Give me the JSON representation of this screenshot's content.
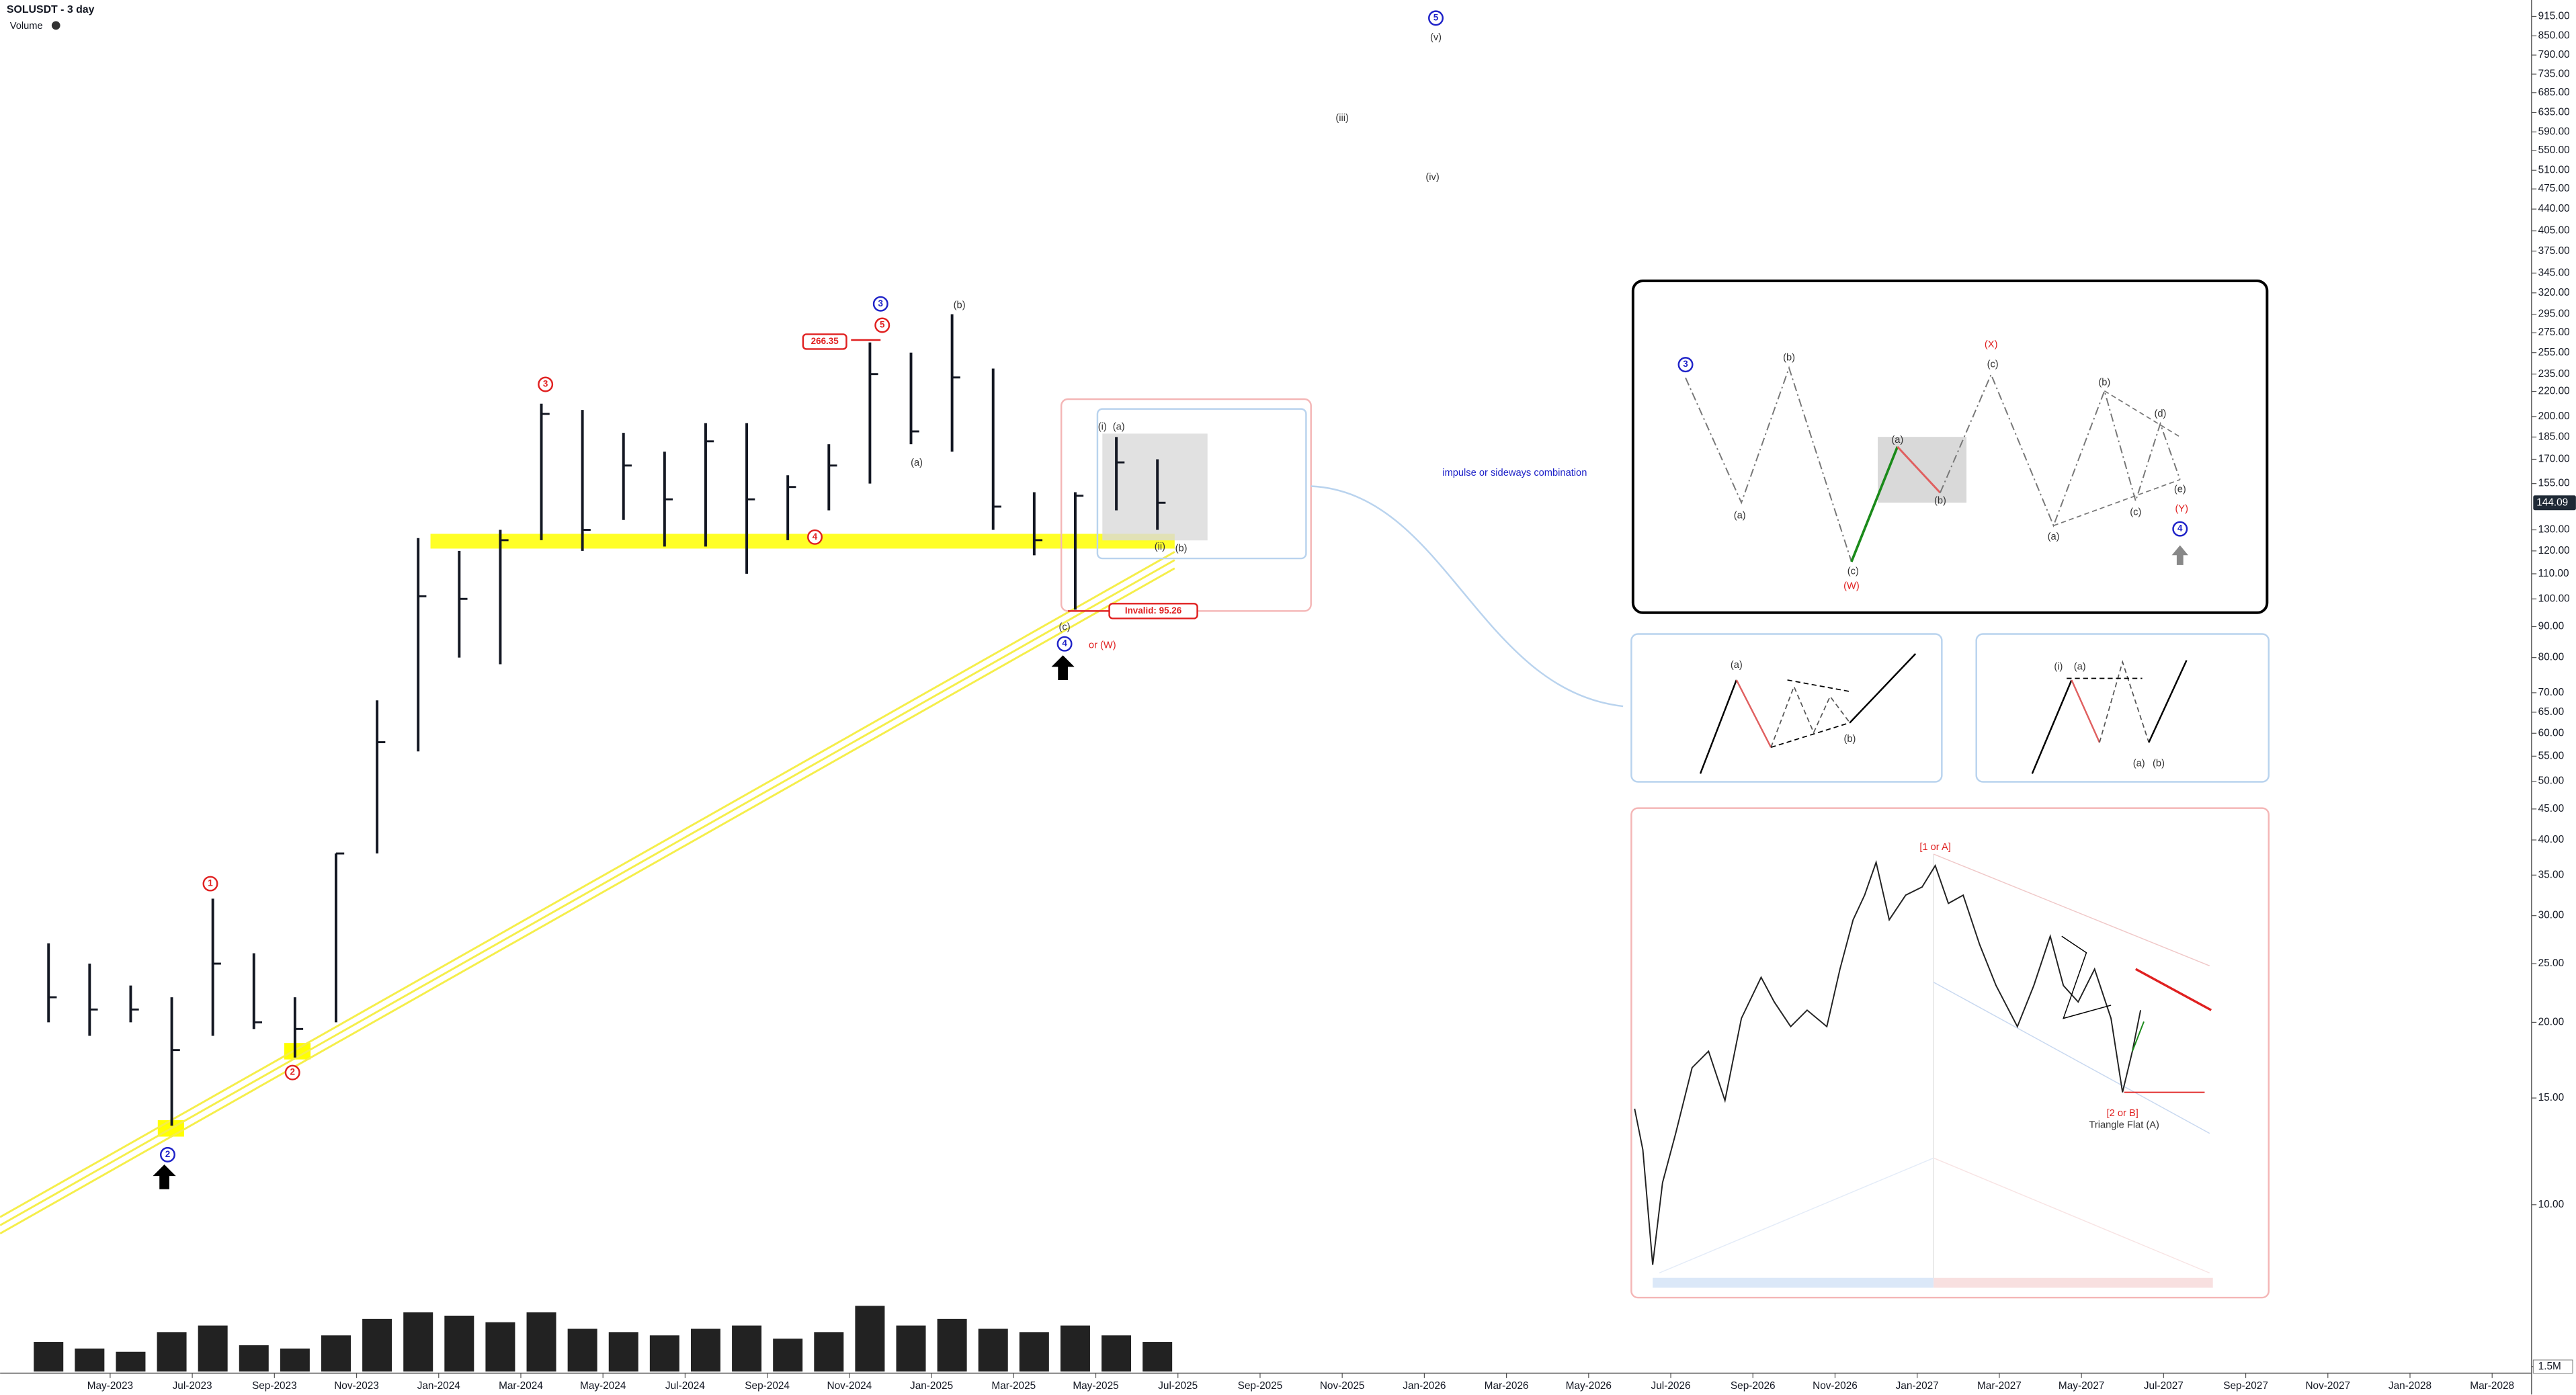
{
  "chart_data": {
    "type": "ohlc",
    "symbol_title": "SOLUSDT - 3 day",
    "volume_title": "Volume",
    "log_scale": true,
    "grid": false,
    "color": "#131722",
    "x": [
      "2023-03",
      "2023-04",
      "2023-05",
      "2023-06",
      "2023-07",
      "2023-08",
      "2023-09",
      "2023-10",
      "2023-11",
      "2023-12",
      "2024-01",
      "2024-02",
      "2024-03",
      "2024-04",
      "2024-05",
      "2024-06",
      "2024-07",
      "2024-08",
      "2024-09",
      "2024-10",
      "2024-11",
      "2024-12",
      "2025-01",
      "2025-02",
      "2025-03",
      "2025-04",
      "2025-05",
      "2025-06"
    ],
    "high": [
      27,
      25,
      23,
      22,
      32,
      26,
      22,
      38,
      68,
      126,
      120,
      130,
      210,
      205,
      188,
      175,
      195,
      195,
      160,
      180,
      265,
      255,
      295,
      240,
      150,
      150,
      185,
      170
    ],
    "low": [
      20,
      19,
      20,
      13.5,
      19,
      19.5,
      17.5,
      20,
      38,
      56,
      80,
      78,
      125,
      120,
      135,
      122,
      122,
      110,
      125,
      140,
      155,
      180,
      175,
      130,
      118,
      96,
      140,
      130
    ],
    "close": [
      22,
      21,
      21,
      18,
      25,
      20,
      19.5,
      38,
      58,
      101,
      100,
      125,
      202,
      130,
      166,
      146,
      182,
      146,
      153,
      166,
      235,
      189,
      232,
      142,
      125,
      148,
      168,
      144.09
    ],
    "volume": [
      9000000,
      7000000,
      6000000,
      12000000,
      14000000,
      8000000,
      7000000,
      11000000,
      16000000,
      18000000,
      17000000,
      15000000,
      18000000,
      13000000,
      12000000,
      11000000,
      13000000,
      14000000,
      10000000,
      12000000,
      20000000,
      14000000,
      16000000,
      13000000,
      12000000,
      14000000,
      11000000,
      9000000
    ],
    "last_price": {
      "value": 144.09,
      "label": "144.09"
    },
    "ylim": [
      6.6,
      974
    ],
    "yticks": [
      {
        "value": 915,
        "label": "915.00"
      },
      {
        "value": 850,
        "label": "850.00"
      },
      {
        "value": 790,
        "label": "790.00"
      },
      {
        "value": 735,
        "label": "735.00"
      },
      {
        "value": 685,
        "label": "685.00"
      },
      {
        "value": 635,
        "label": "635.00"
      },
      {
        "value": 590,
        "label": "590.00"
      },
      {
        "value": 550,
        "label": "550.00"
      },
      {
        "value": 510,
        "label": "510.00"
      },
      {
        "value": 475,
        "label": "475.00"
      },
      {
        "value": 440,
        "label": "440.00"
      },
      {
        "value": 405,
        "label": "405.00"
      },
      {
        "value": 375,
        "label": "375.00"
      },
      {
        "value": 345,
        "label": "345.00"
      },
      {
        "value": 320,
        "label": "320.00"
      },
      {
        "value": 295,
        "label": "295.00"
      },
      {
        "value": 275,
        "label": "275.00"
      },
      {
        "value": 255,
        "label": "255.00"
      },
      {
        "value": 235,
        "label": "235.00"
      },
      {
        "value": 220,
        "label": "220.00"
      },
      {
        "value": 200,
        "label": "200.00"
      },
      {
        "value": 185,
        "label": "185.00"
      },
      {
        "value": 170,
        "label": "170.00"
      },
      {
        "value": 155,
        "label": "155.00"
      },
      {
        "value": 130,
        "label": "130.00"
      },
      {
        "value": 120,
        "label": "120.00"
      },
      {
        "value": 110,
        "label": "110.00"
      },
      {
        "value": 100,
        "label": "100.00"
      },
      {
        "value": 90,
        "label": "90.00"
      },
      {
        "value": 80,
        "label": "80.00"
      },
      {
        "value": 70,
        "label": "70.00"
      },
      {
        "value": 65,
        "label": "65.00"
      },
      {
        "value": 60,
        "label": "60.00"
      },
      {
        "value": 55,
        "label": "55.00"
      },
      {
        "value": 50,
        "label": "50.00"
      },
      {
        "value": 45,
        "label": "45.00"
      },
      {
        "value": 40,
        "label": "40.00"
      },
      {
        "value": 35,
        "label": "35.00"
      },
      {
        "value": 30,
        "label": "30.00"
      },
      {
        "value": 25,
        "label": "25.00"
      },
      {
        "value": 20,
        "label": "20.00"
      },
      {
        "value": 15,
        "label": "15.00"
      },
      {
        "value": 10,
        "label": "10.00"
      }
    ],
    "volume_ylim": [
      0,
      22500000
    ],
    "volume_yticks": [
      {
        "value": 1500000,
        "label": "1.5M"
      }
    ],
    "xticks": [
      {
        "value": "2023-05",
        "label": "May-2023"
      },
      {
        "value": "2023-07",
        "label": "Jul-2023"
      },
      {
        "value": "2023-09",
        "label": "Sep-2023"
      },
      {
        "value": "2023-11",
        "label": "Nov-2023"
      },
      {
        "value": "2024-01",
        "label": "Jan-2024"
      },
      {
        "value": "2024-03",
        "label": "Mar-2024"
      },
      {
        "value": "2024-05",
        "label": "May-2024"
      },
      {
        "value": "2024-07",
        "label": "Jul-2024"
      },
      {
        "value": "2024-09",
        "label": "Sep-2024"
      },
      {
        "value": "2024-11",
        "label": "Nov-2024"
      },
      {
        "value": "2025-01",
        "label": "Jan-2025"
      },
      {
        "value": "2025-03",
        "label": "Mar-2025"
      },
      {
        "value": "2025-05",
        "label": "May-2025"
      },
      {
        "value": "2025-07",
        "label": "Jul-2025"
      },
      {
        "value": "2025-09",
        "label": "Sep-2025"
      },
      {
        "value": "2025-11",
        "label": "Nov-2025"
      },
      {
        "value": "2026-01",
        "label": "Jan-2026"
      },
      {
        "value": "2026-03",
        "label": "Mar-2026"
      },
      {
        "value": "2026-05",
        "label": "May-2026"
      },
      {
        "value": "2026-07",
        "label": "Jul-2026"
      },
      {
        "value": "2026-09",
        "label": "Sep-2026"
      },
      {
        "value": "2026-11",
        "label": "Nov-2026"
      },
      {
        "value": "2027-01",
        "label": "Jan-2027"
      },
      {
        "value": "2027-03",
        "label": "Mar-2027"
      },
      {
        "value": "2027-05",
        "label": "May-2027"
      },
      {
        "value": "2027-07",
        "label": "Jul-2027"
      },
      {
        "value": "2027-09",
        "label": "Sep-2027"
      },
      {
        "value": "2027-11",
        "label": "Nov-2027"
      },
      {
        "value": "2028-01",
        "label": "Jan-2028"
      },
      {
        "value": "2028-03",
        "label": "Mar-2028"
      }
    ],
    "annotations": [
      {
        "text": "5",
        "color": "#1e22c8",
        "shape": "circle"
      },
      {
        "text": "(v)",
        "color": "#333333"
      },
      {
        "text": "(iii)",
        "color": "#333333"
      },
      {
        "text": "(iv)",
        "color": "#333333"
      },
      {
        "text": "3",
        "color": "#1e22c8",
        "shape": "circle"
      },
      {
        "text": "5",
        "color": "#e02020",
        "shape": "circle"
      },
      {
        "text": "(b)",
        "color": "#333333"
      },
      {
        "text": "266.35",
        "color": "#e02020",
        "shape": "box"
      },
      {
        "text": "3",
        "color": "#e02020",
        "shape": "circle"
      },
      {
        "text": "(a)",
        "color": "#333333"
      },
      {
        "text": "4",
        "color": "#e02020",
        "shape": "circle"
      },
      {
        "text": "(i)",
        "color": "#333333"
      },
      {
        "text": "(a)",
        "color": "#333333"
      },
      {
        "text": "(ii)",
        "color": "#333333"
      },
      {
        "text": "(b)",
        "color": "#333333"
      },
      {
        "text": "(c)",
        "color": "#333333"
      },
      {
        "text": "4",
        "color": "#1e22c8",
        "shape": "circle"
      },
      {
        "text": "or (W)",
        "color": "#e02020"
      },
      {
        "text": "Invalid: 95.26",
        "color": "#e02020",
        "shape": "box"
      },
      {
        "text": "1",
        "color": "#e02020",
        "shape": "circle"
      },
      {
        "text": "2",
        "color": "#e02020",
        "shape": "circle"
      },
      {
        "text": "2",
        "color": "#1e22c8",
        "shape": "circle"
      },
      {
        "text": "impulse or sideways combination",
        "color": "#1e22c8"
      },
      {
        "text": "3",
        "color": "#1e22c8",
        "shape": "circle"
      },
      {
        "text": "(b)",
        "color": "#333333"
      },
      {
        "text": "(a)",
        "color": "#333333"
      },
      {
        "text": "(a)",
        "color": "#333333"
      },
      {
        "text": "(b)",
        "color": "#333333"
      },
      {
        "text": "(c)",
        "color": "#333333"
      },
      {
        "text": "(W)",
        "color": "#e02020"
      },
      {
        "text": "(X)",
        "color": "#e02020"
      },
      {
        "text": "(c)",
        "color": "#333333"
      },
      {
        "text": "(b)",
        "color": "#333333"
      },
      {
        "text": "(d)",
        "color": "#333333"
      },
      {
        "text": "(a)",
        "color": "#333333"
      },
      {
        "text": "(c)",
        "color": "#333333"
      },
      {
        "text": "(e)",
        "color": "#333333"
      },
      {
        "text": "(Y)",
        "color": "#e02020"
      },
      {
        "text": "4",
        "color": "#1e22c8",
        "shape": "circle"
      },
      {
        "text": "(a)",
        "color": "#333333"
      },
      {
        "text": "(b)",
        "color": "#333333"
      },
      {
        "text": "(i)",
        "color": "#333333"
      },
      {
        "text": "(a)",
        "color": "#333333"
      },
      {
        "text": "(a)",
        "color": "#333333"
      },
      {
        "text": "(b)",
        "color": "#333333"
      },
      {
        "text": "[1 or A]",
        "color": "#e02020"
      },
      {
        "text": "[2 or B]",
        "color": "#e02020"
      },
      {
        "text": "Triangle Flat (A)",
        "color": "#333333"
      }
    ]
  }
}
